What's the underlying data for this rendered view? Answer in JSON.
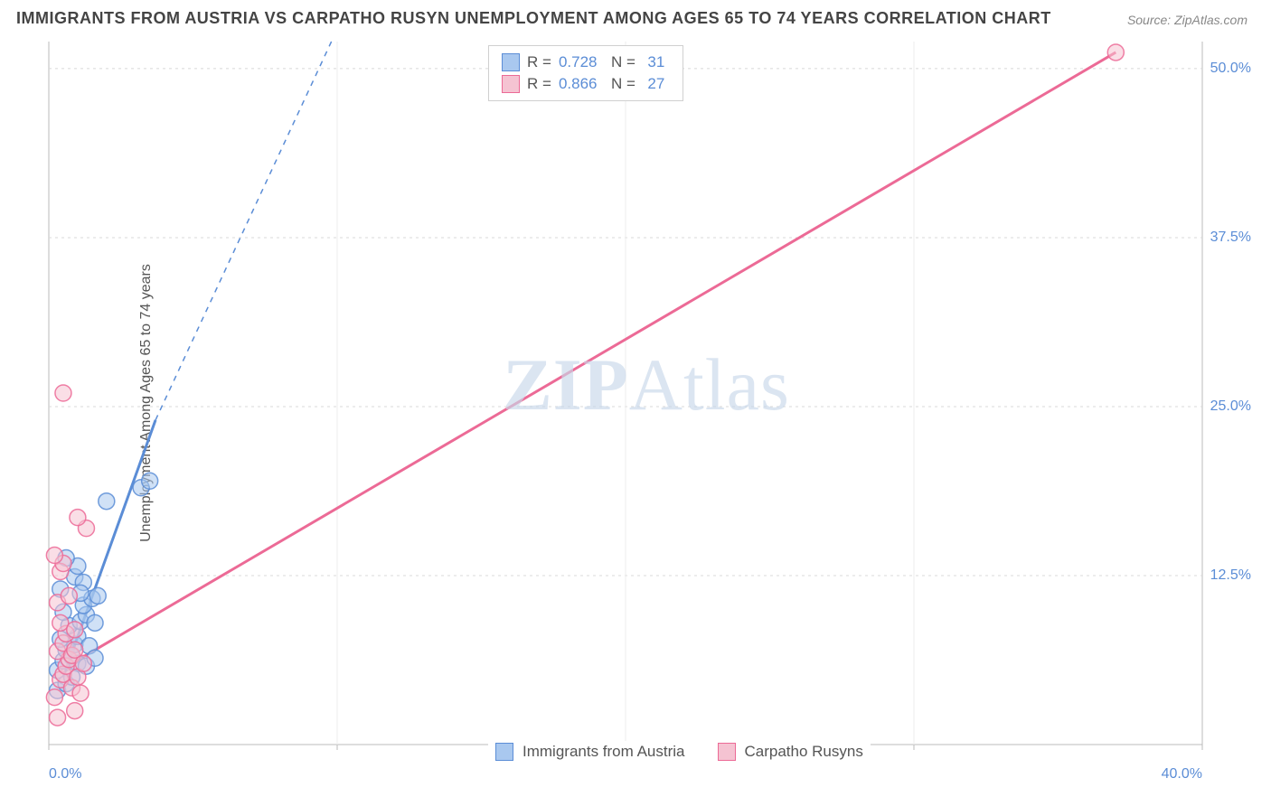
{
  "title": "IMMIGRANTS FROM AUSTRIA VS CARPATHO RUSYN UNEMPLOYMENT AMONG AGES 65 TO 74 YEARS CORRELATION CHART",
  "source": "Source: ZipAtlas.com",
  "y_axis_label": "Unemployment Among Ages 65 to 74 years",
  "watermark_bold": "ZIP",
  "watermark_rest": "Atlas",
  "chart": {
    "type": "scatter",
    "background_color": "#ffffff",
    "grid_color": "#d8d8d8",
    "axis_line_color": "#bbbbbb",
    "xlim": [
      0,
      40
    ],
    "ylim": [
      0,
      52
    ],
    "x_ticks": [
      0,
      10,
      20,
      30,
      40
    ],
    "x_tick_labels": [
      "0.0%",
      "",
      "",
      "",
      "40.0%"
    ],
    "y_ticks": [
      12.5,
      25,
      37.5,
      50
    ],
    "y_tick_labels": [
      "12.5%",
      "25.0%",
      "37.5%",
      "50.0%"
    ],
    "series": [
      {
        "name": "Immigrants from Austria",
        "color_fill": "#a9c8ef",
        "color_stroke": "#5b8dd6",
        "r_value": "0.728",
        "n_value": "31",
        "marker_radius": 9,
        "marker_opacity": 0.55,
        "trend_line": {
          "x1": 0.5,
          "y1": 5.0,
          "x2": 3.7,
          "y2": 24.0,
          "width": 3
        },
        "trend_line_ext": {
          "x1": 3.7,
          "y1": 24.0,
          "x2": 9.8,
          "y2": 52.0,
          "dash": "6,6",
          "width": 1.5
        },
        "points": [
          [
            0.3,
            5.5
          ],
          [
            0.5,
            6.2
          ],
          [
            0.6,
            7.0
          ],
          [
            0.8,
            6.5
          ],
          [
            0.9,
            7.4
          ],
          [
            1.0,
            8.0
          ],
          [
            0.7,
            8.8
          ],
          [
            1.1,
            9.1
          ],
          [
            1.3,
            9.6
          ],
          [
            1.2,
            10.3
          ],
          [
            1.5,
            10.8
          ],
          [
            1.6,
            9.0
          ],
          [
            0.4,
            11.5
          ],
          [
            0.9,
            12.4
          ],
          [
            1.0,
            13.2
          ],
          [
            0.6,
            13.8
          ],
          [
            1.2,
            12.0
          ],
          [
            1.7,
            11.0
          ],
          [
            1.0,
            6.0
          ],
          [
            1.4,
            7.3
          ],
          [
            2.0,
            18.0
          ],
          [
            3.2,
            19.0
          ],
          [
            3.5,
            19.5
          ],
          [
            0.3,
            4.0
          ],
          [
            0.6,
            4.5
          ],
          [
            0.8,
            5.0
          ],
          [
            1.3,
            5.8
          ],
          [
            1.6,
            6.4
          ],
          [
            0.5,
            9.8
          ],
          [
            0.4,
            7.8
          ],
          [
            1.1,
            11.2
          ]
        ]
      },
      {
        "name": "Carpatho Rusyns",
        "color_fill": "#f5c3d2",
        "color_stroke": "#ec6a96",
        "r_value": "0.866",
        "n_value": "27",
        "marker_radius": 9,
        "marker_opacity": 0.55,
        "trend_line": {
          "x1": 0.4,
          "y1": 5.5,
          "x2": 37.0,
          "y2": 51.2,
          "width": 3
        },
        "points": [
          [
            0.2,
            3.5
          ],
          [
            0.3,
            2.0
          ],
          [
            0.4,
            4.8
          ],
          [
            0.5,
            5.2
          ],
          [
            0.6,
            5.8
          ],
          [
            0.7,
            6.3
          ],
          [
            0.3,
            6.9
          ],
          [
            0.5,
            7.5
          ],
          [
            0.8,
            6.6
          ],
          [
            0.9,
            7.0
          ],
          [
            0.6,
            8.2
          ],
          [
            0.4,
            9.0
          ],
          [
            0.3,
            10.5
          ],
          [
            0.7,
            11.0
          ],
          [
            0.4,
            12.8
          ],
          [
            0.5,
            13.4
          ],
          [
            0.2,
            14.0
          ],
          [
            0.8,
            4.2
          ],
          [
            1.0,
            5.0
          ],
          [
            1.2,
            6.0
          ],
          [
            0.9,
            8.5
          ],
          [
            1.3,
            16.0
          ],
          [
            1.0,
            16.8
          ],
          [
            0.5,
            26.0
          ],
          [
            0.9,
            2.5
          ],
          [
            1.1,
            3.8
          ],
          [
            37.0,
            51.2
          ]
        ]
      }
    ]
  },
  "legend": {
    "series1_label": "Immigrants from Austria",
    "series2_label": "Carpatho Rusyns",
    "r_prefix": "R =",
    "n_prefix": "N ="
  }
}
